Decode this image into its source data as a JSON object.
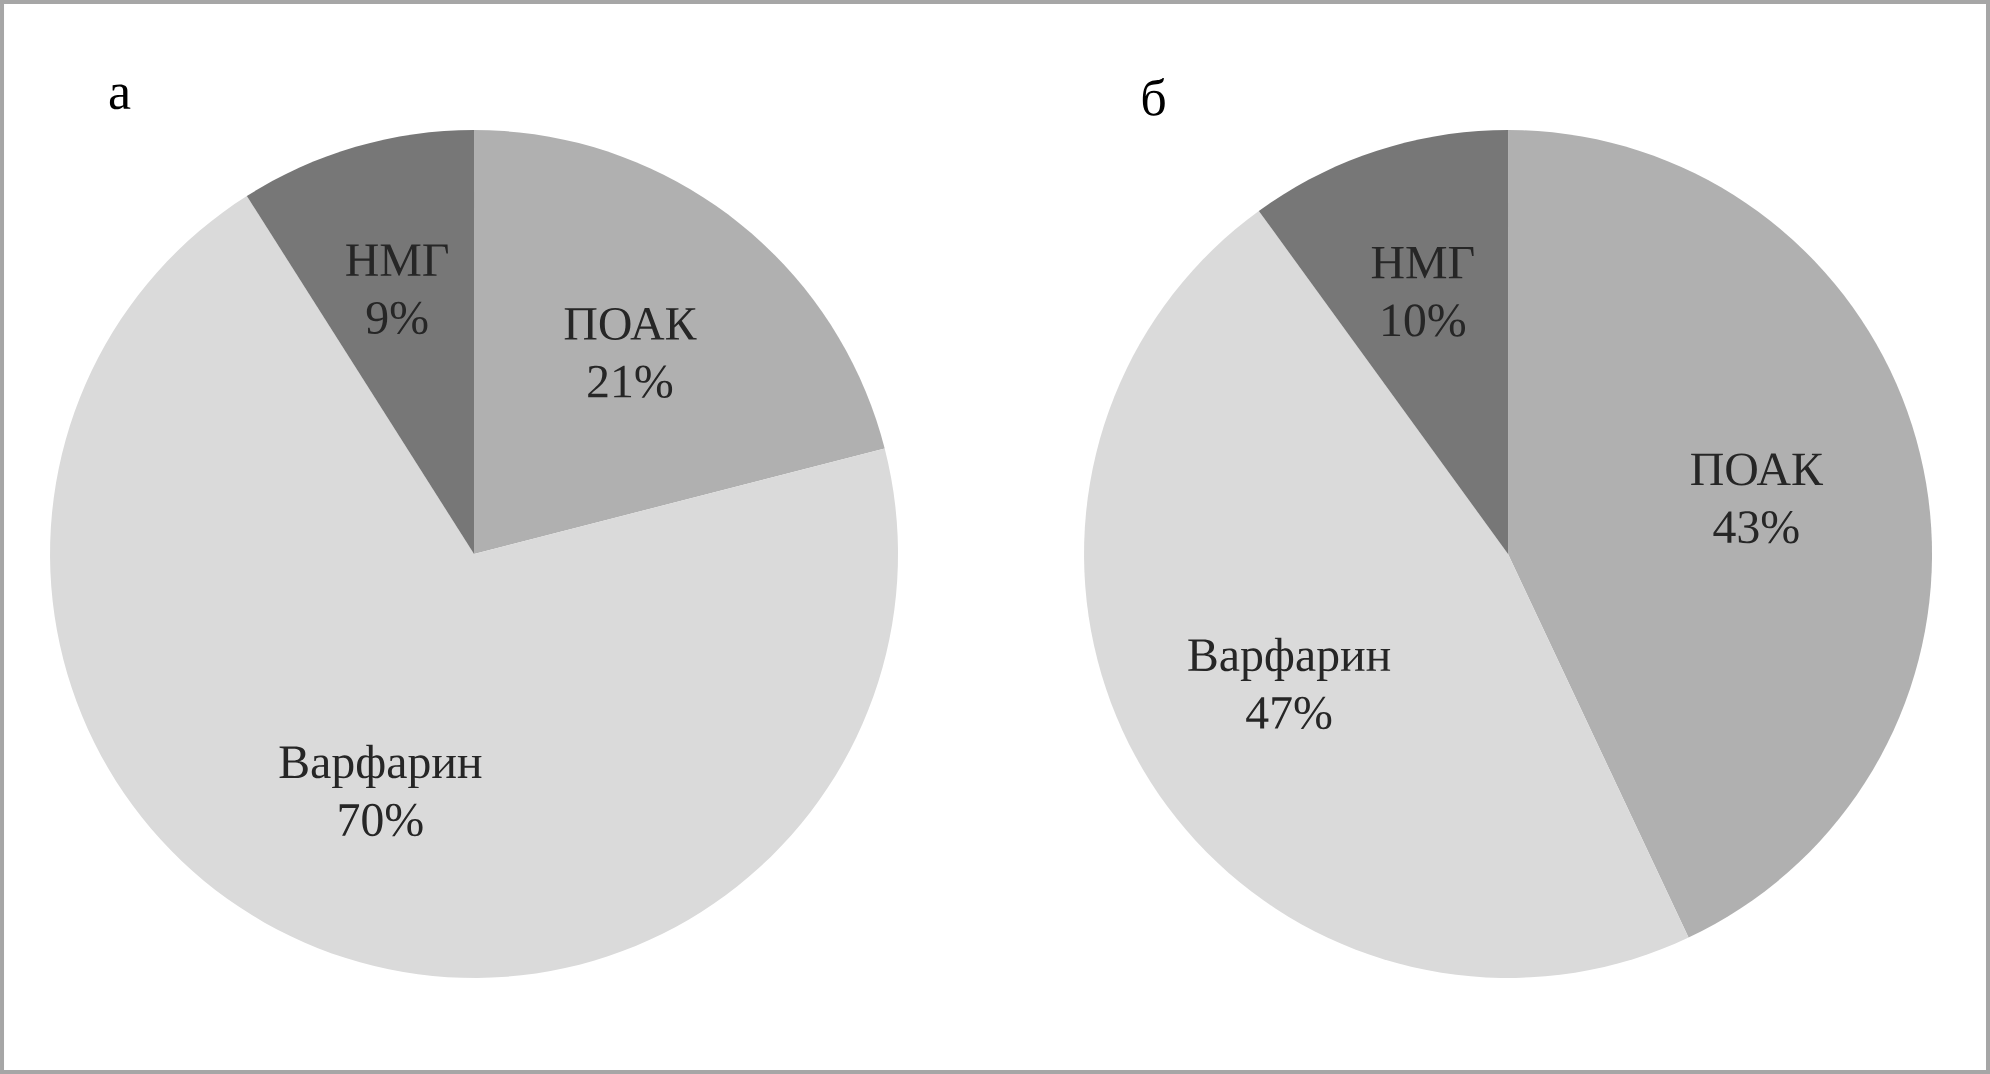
{
  "chart_data": [
    {
      "type": "pie",
      "title": "а",
      "categories": [
        "ПОАК",
        "Варфарин",
        "НМГ"
      ],
      "values": [
        21,
        70,
        9
      ],
      "value_labels": [
        "21%",
        "70%",
        "9%"
      ],
      "colors": [
        "#b0b0b0",
        "#dadada",
        "#777777"
      ]
    },
    {
      "type": "pie",
      "title": "б",
      "categories": [
        "ПОАК",
        "Варфарин",
        "НМГ"
      ],
      "values": [
        43,
        47,
        10
      ],
      "value_labels": [
        "43%",
        "47%",
        "10%"
      ],
      "colors": [
        "#b0b0b0",
        "#dadada",
        "#777777"
      ]
    }
  ]
}
